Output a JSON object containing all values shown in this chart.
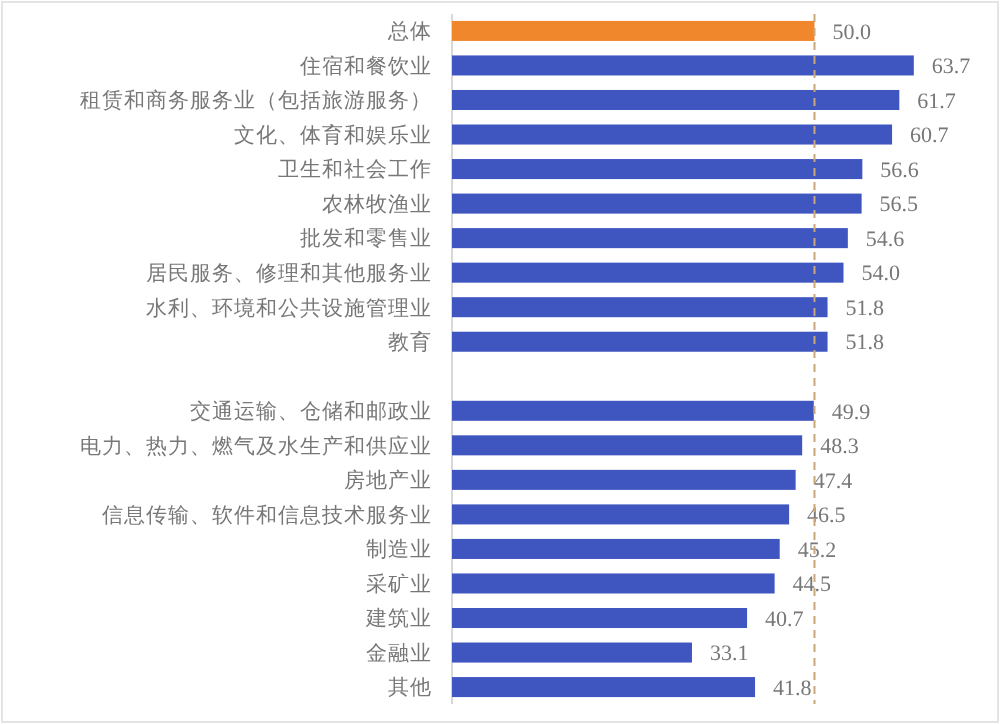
{
  "chart_data": {
    "type": "bar",
    "orientation": "horizontal",
    "categories": [
      "总体",
      "住宿和餐饮业",
      "租赁和商务服务业（包括旅游服务）",
      "文化、体育和娱乐业",
      "卫生和社会工作",
      "农林牧渔业",
      "批发和零售业",
      "居民服务、修理和其他服务业",
      "水利、环境和公共设施管理业",
      "教育",
      null,
      "交通运输、仓储和邮政业",
      "电力、热力、燃气及水生产和供应业",
      "房地产业",
      "信息传输、软件和信息技术服务业",
      "制造业",
      "采矿业",
      "建筑业",
      "金融业",
      "其他"
    ],
    "values": [
      50.0,
      63.7,
      61.7,
      60.7,
      56.6,
      56.5,
      54.6,
      54.0,
      51.8,
      51.8,
      null,
      49.9,
      48.3,
      47.4,
      46.5,
      45.2,
      44.5,
      40.7,
      33.1,
      41.8
    ],
    "colors": [
      "#f0872c",
      "#3f55c0",
      "#3f55c0",
      "#3f55c0",
      "#3f55c0",
      "#3f55c0",
      "#3f55c0",
      "#3f55c0",
      "#3f55c0",
      "#3f55c0",
      null,
      "#3f55c0",
      "#3f55c0",
      "#3f55c0",
      "#3f55c0",
      "#3f55c0",
      "#3f55c0",
      "#3f55c0",
      "#3f55c0",
      "#3f55c0"
    ],
    "value_labels": [
      "50.0",
      "63.7",
      "61.7",
      "60.7",
      "56.6",
      "56.5",
      "54.6",
      "54.0",
      "51.8",
      "51.8",
      null,
      "49.9",
      "48.3",
      "47.4",
      "46.5",
      "45.2",
      "44.5",
      "40.7",
      "33.1",
      "41.8"
    ],
    "tick_labels": "y",
    "ref_lines": [
      {
        "axis": "x",
        "value": 50,
        "color": "#c9a77a",
        "line_style": "dashed"
      }
    ]
  }
}
